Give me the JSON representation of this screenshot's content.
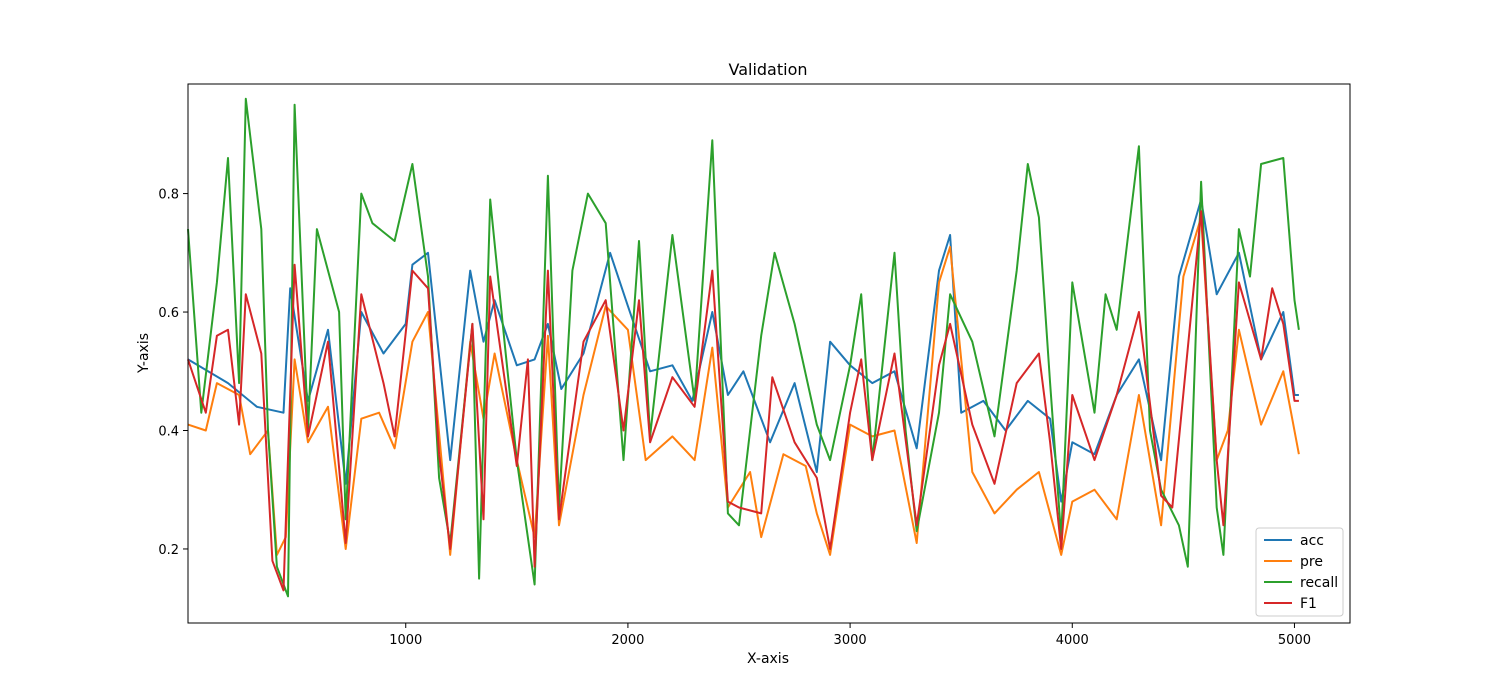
{
  "chart_data": {
    "type": "line",
    "title": "Validation",
    "xlabel": "X-axis",
    "ylabel": "Y-axis",
    "xlim": [
      20,
      5250
    ],
    "ylim": [
      0.075,
      0.985
    ],
    "xticks": [
      1000,
      2000,
      3000,
      4000,
      5000
    ],
    "yticks": [
      0.2,
      0.4,
      0.6,
      0.8
    ],
    "grid": false,
    "legend_position": "lower right",
    "series": [
      {
        "name": "acc",
        "color": "#1f77b4",
        "points": [
          [
            20,
            0.52
          ],
          [
            200,
            0.48
          ],
          [
            330,
            0.44
          ],
          [
            450,
            0.43
          ],
          [
            480,
            0.64
          ],
          [
            560,
            0.45
          ],
          [
            650,
            0.57
          ],
          [
            730,
            0.31
          ],
          [
            800,
            0.6
          ],
          [
            900,
            0.53
          ],
          [
            1000,
            0.58
          ],
          [
            1030,
            0.68
          ],
          [
            1100,
            0.7
          ],
          [
            1200,
            0.35
          ],
          [
            1290,
            0.67
          ],
          [
            1350,
            0.55
          ],
          [
            1400,
            0.62
          ],
          [
            1500,
            0.51
          ],
          [
            1580,
            0.52
          ],
          [
            1640,
            0.58
          ],
          [
            1700,
            0.47
          ],
          [
            1800,
            0.53
          ],
          [
            1920,
            0.7
          ],
          [
            2000,
            0.61
          ],
          [
            2100,
            0.5
          ],
          [
            2200,
            0.51
          ],
          [
            2290,
            0.45
          ],
          [
            2380,
            0.6
          ],
          [
            2450,
            0.46
          ],
          [
            2520,
            0.5
          ],
          [
            2640,
            0.38
          ],
          [
            2750,
            0.48
          ],
          [
            2850,
            0.33
          ],
          [
            2910,
            0.55
          ],
          [
            3000,
            0.51
          ],
          [
            3100,
            0.48
          ],
          [
            3200,
            0.5
          ],
          [
            3300,
            0.37
          ],
          [
            3400,
            0.67
          ],
          [
            3450,
            0.73
          ],
          [
            3500,
            0.43
          ],
          [
            3600,
            0.45
          ],
          [
            3700,
            0.4
          ],
          [
            3800,
            0.45
          ],
          [
            3900,
            0.42
          ],
          [
            3950,
            0.28
          ],
          [
            4000,
            0.38
          ],
          [
            4100,
            0.36
          ],
          [
            4200,
            0.46
          ],
          [
            4300,
            0.52
          ],
          [
            4400,
            0.35
          ],
          [
            4480,
            0.66
          ],
          [
            4580,
            0.79
          ],
          [
            4650,
            0.63
          ],
          [
            4750,
            0.7
          ],
          [
            4850,
            0.52
          ],
          [
            4950,
            0.6
          ],
          [
            5000,
            0.46
          ],
          [
            5020,
            0.46
          ]
        ]
      },
      {
        "name": "pre",
        "color": "#ff7f0e",
        "points": [
          [
            20,
            0.41
          ],
          [
            100,
            0.4
          ],
          [
            150,
            0.48
          ],
          [
            250,
            0.46
          ],
          [
            300,
            0.36
          ],
          [
            380,
            0.4
          ],
          [
            420,
            0.19
          ],
          [
            460,
            0.22
          ],
          [
            500,
            0.52
          ],
          [
            560,
            0.38
          ],
          [
            650,
            0.44
          ],
          [
            730,
            0.2
          ],
          [
            800,
            0.42
          ],
          [
            880,
            0.43
          ],
          [
            950,
            0.37
          ],
          [
            1030,
            0.55
          ],
          [
            1100,
            0.6
          ],
          [
            1200,
            0.19
          ],
          [
            1290,
            0.55
          ],
          [
            1350,
            0.42
          ],
          [
            1400,
            0.53
          ],
          [
            1500,
            0.35
          ],
          [
            1580,
            0.22
          ],
          [
            1640,
            0.56
          ],
          [
            1690,
            0.24
          ],
          [
            1800,
            0.46
          ],
          [
            1900,
            0.61
          ],
          [
            2000,
            0.57
          ],
          [
            2080,
            0.35
          ],
          [
            2200,
            0.39
          ],
          [
            2300,
            0.35
          ],
          [
            2380,
            0.54
          ],
          [
            2450,
            0.27
          ],
          [
            2550,
            0.33
          ],
          [
            2600,
            0.22
          ],
          [
            2700,
            0.36
          ],
          [
            2800,
            0.34
          ],
          [
            2850,
            0.26
          ],
          [
            2910,
            0.19
          ],
          [
            3000,
            0.41
          ],
          [
            3100,
            0.39
          ],
          [
            3200,
            0.4
          ],
          [
            3300,
            0.21
          ],
          [
            3400,
            0.65
          ],
          [
            3450,
            0.71
          ],
          [
            3550,
            0.33
          ],
          [
            3650,
            0.26
          ],
          [
            3750,
            0.3
          ],
          [
            3850,
            0.33
          ],
          [
            3950,
            0.19
          ],
          [
            4000,
            0.28
          ],
          [
            4100,
            0.3
          ],
          [
            4200,
            0.25
          ],
          [
            4300,
            0.46
          ],
          [
            4400,
            0.24
          ],
          [
            4500,
            0.66
          ],
          [
            4580,
            0.76
          ],
          [
            4650,
            0.35
          ],
          [
            4700,
            0.4
          ],
          [
            4750,
            0.57
          ],
          [
            4850,
            0.41
          ],
          [
            4950,
            0.5
          ],
          [
            5020,
            0.36
          ]
        ]
      },
      {
        "name": "recall",
        "color": "#2ca02c",
        "points": [
          [
            20,
            0.74
          ],
          [
            80,
            0.43
          ],
          [
            150,
            0.65
          ],
          [
            200,
            0.86
          ],
          [
            250,
            0.48
          ],
          [
            280,
            0.96
          ],
          [
            350,
            0.74
          ],
          [
            380,
            0.4
          ],
          [
            420,
            0.17
          ],
          [
            470,
            0.12
          ],
          [
            500,
            0.95
          ],
          [
            560,
            0.4
          ],
          [
            600,
            0.74
          ],
          [
            700,
            0.6
          ],
          [
            730,
            0.25
          ],
          [
            800,
            0.8
          ],
          [
            850,
            0.75
          ],
          [
            950,
            0.72
          ],
          [
            1030,
            0.85
          ],
          [
            1100,
            0.66
          ],
          [
            1150,
            0.32
          ],
          [
            1200,
            0.21
          ],
          [
            1300,
            0.58
          ],
          [
            1330,
            0.15
          ],
          [
            1380,
            0.79
          ],
          [
            1450,
            0.53
          ],
          [
            1500,
            0.35
          ],
          [
            1580,
            0.14
          ],
          [
            1640,
            0.83
          ],
          [
            1690,
            0.27
          ],
          [
            1750,
            0.67
          ],
          [
            1820,
            0.8
          ],
          [
            1900,
            0.75
          ],
          [
            1980,
            0.35
          ],
          [
            2050,
            0.72
          ],
          [
            2100,
            0.39
          ],
          [
            2200,
            0.73
          ],
          [
            2300,
            0.45
          ],
          [
            2380,
            0.89
          ],
          [
            2450,
            0.26
          ],
          [
            2500,
            0.24
          ],
          [
            2600,
            0.56
          ],
          [
            2660,
            0.7
          ],
          [
            2750,
            0.58
          ],
          [
            2850,
            0.41
          ],
          [
            2910,
            0.35
          ],
          [
            3000,
            0.51
          ],
          [
            3050,
            0.63
          ],
          [
            3100,
            0.35
          ],
          [
            3200,
            0.7
          ],
          [
            3250,
            0.4
          ],
          [
            3300,
            0.23
          ],
          [
            3400,
            0.43
          ],
          [
            3450,
            0.63
          ],
          [
            3550,
            0.55
          ],
          [
            3650,
            0.39
          ],
          [
            3750,
            0.67
          ],
          [
            3800,
            0.85
          ],
          [
            3850,
            0.76
          ],
          [
            3900,
            0.48
          ],
          [
            3950,
            0.22
          ],
          [
            4000,
            0.65
          ],
          [
            4100,
            0.43
          ],
          [
            4150,
            0.63
          ],
          [
            4200,
            0.57
          ],
          [
            4300,
            0.88
          ],
          [
            4350,
            0.4
          ],
          [
            4400,
            0.3
          ],
          [
            4480,
            0.24
          ],
          [
            4520,
            0.17
          ],
          [
            4580,
            0.82
          ],
          [
            4650,
            0.27
          ],
          [
            4680,
            0.19
          ],
          [
            4750,
            0.74
          ],
          [
            4800,
            0.66
          ],
          [
            4850,
            0.85
          ],
          [
            4950,
            0.86
          ],
          [
            5000,
            0.62
          ],
          [
            5020,
            0.57
          ]
        ]
      },
      {
        "name": "F1",
        "color": "#d62728",
        "points": [
          [
            20,
            0.52
          ],
          [
            100,
            0.43
          ],
          [
            150,
            0.56
          ],
          [
            200,
            0.57
          ],
          [
            250,
            0.41
          ],
          [
            280,
            0.63
          ],
          [
            350,
            0.53
          ],
          [
            400,
            0.18
          ],
          [
            450,
            0.13
          ],
          [
            500,
            0.68
          ],
          [
            560,
            0.39
          ],
          [
            650,
            0.55
          ],
          [
            730,
            0.21
          ],
          [
            800,
            0.63
          ],
          [
            900,
            0.48
          ],
          [
            950,
            0.39
          ],
          [
            1030,
            0.67
          ],
          [
            1100,
            0.64
          ],
          [
            1150,
            0.36
          ],
          [
            1200,
            0.2
          ],
          [
            1300,
            0.58
          ],
          [
            1350,
            0.25
          ],
          [
            1380,
            0.66
          ],
          [
            1500,
            0.34
          ],
          [
            1550,
            0.52
          ],
          [
            1580,
            0.17
          ],
          [
            1640,
            0.67
          ],
          [
            1690,
            0.25
          ],
          [
            1800,
            0.55
          ],
          [
            1900,
            0.62
          ],
          [
            1980,
            0.4
          ],
          [
            2050,
            0.62
          ],
          [
            2100,
            0.38
          ],
          [
            2200,
            0.49
          ],
          [
            2300,
            0.44
          ],
          [
            2380,
            0.67
          ],
          [
            2450,
            0.28
          ],
          [
            2500,
            0.27
          ],
          [
            2600,
            0.26
          ],
          [
            2650,
            0.49
          ],
          [
            2750,
            0.38
          ],
          [
            2850,
            0.32
          ],
          [
            2910,
            0.2
          ],
          [
            3000,
            0.43
          ],
          [
            3050,
            0.52
          ],
          [
            3100,
            0.35
          ],
          [
            3200,
            0.53
          ],
          [
            3300,
            0.24
          ],
          [
            3400,
            0.51
          ],
          [
            3450,
            0.58
          ],
          [
            3550,
            0.41
          ],
          [
            3650,
            0.31
          ],
          [
            3750,
            0.48
          ],
          [
            3850,
            0.53
          ],
          [
            3900,
            0.38
          ],
          [
            3950,
            0.2
          ],
          [
            4000,
            0.46
          ],
          [
            4100,
            0.35
          ],
          [
            4200,
            0.46
          ],
          [
            4300,
            0.6
          ],
          [
            4400,
            0.29
          ],
          [
            4450,
            0.27
          ],
          [
            4580,
            0.77
          ],
          [
            4650,
            0.35
          ],
          [
            4680,
            0.24
          ],
          [
            4750,
            0.65
          ],
          [
            4850,
            0.52
          ],
          [
            4900,
            0.64
          ],
          [
            4950,
            0.58
          ],
          [
            5000,
            0.45
          ],
          [
            5020,
            0.45
          ]
        ]
      }
    ]
  }
}
